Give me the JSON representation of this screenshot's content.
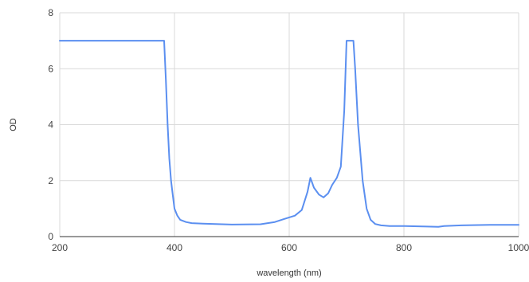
{
  "chart_data": {
    "type": "line",
    "xlabel": "wavelength (nm)",
    "ylabel": "OD",
    "xlim": [
      200,
      1000
    ],
    "ylim": [
      0,
      8
    ],
    "x_ticks": [
      200,
      400,
      600,
      800,
      1000
    ],
    "y_ticks": [
      0,
      2,
      4,
      6,
      8
    ],
    "grid": true,
    "legend": "none",
    "line_color": "#5b8ff0",
    "grid_color": "#d9d9d9",
    "series": [
      {
        "x": [
          200,
          250,
          300,
          350,
          382,
          385,
          388,
          391,
          394,
          397,
          400,
          405,
          410,
          420,
          430,
          450,
          500,
          550,
          575,
          590,
          610,
          622,
          632,
          637,
          643,
          652,
          660,
          668,
          675,
          683,
          690,
          696,
          700,
          703,
          712,
          715,
          720,
          728,
          735,
          742,
          750,
          760,
          775,
          800,
          840,
          860,
          870,
          900,
          950,
          1000
        ],
        "values": [
          7.0,
          7.0,
          7.0,
          7.0,
          7.0,
          5.6,
          4.0,
          2.8,
          2.0,
          1.5,
          1.0,
          0.75,
          0.6,
          0.52,
          0.48,
          0.46,
          0.43,
          0.44,
          0.52,
          0.62,
          0.75,
          0.95,
          1.6,
          2.1,
          1.75,
          1.5,
          1.4,
          1.55,
          1.85,
          2.1,
          2.5,
          4.5,
          7.0,
          7.0,
          7.0,
          6.0,
          4.0,
          2.0,
          1.0,
          0.6,
          0.45,
          0.4,
          0.38,
          0.38,
          0.36,
          0.35,
          0.38,
          0.4,
          0.42,
          0.42
        ]
      }
    ]
  }
}
